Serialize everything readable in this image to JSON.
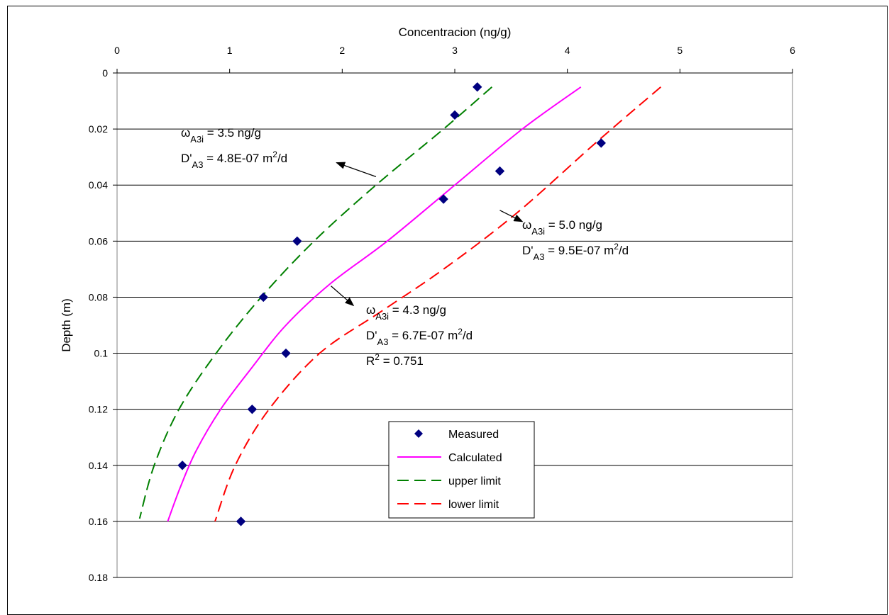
{
  "chart_data": {
    "type": "scatter",
    "title": "",
    "xlabel": "Concentracion (ng/g)",
    "ylabel": "Depth (m)",
    "xlim": [
      0,
      6
    ],
    "ylim": [
      0,
      0.18
    ],
    "x_axis_position": "top",
    "y_axis_reversed": true,
    "x_ticks": [
      "0",
      "1",
      "2",
      "3",
      "4",
      "5",
      "6"
    ],
    "y_ticks": [
      "0",
      "0.02",
      "0.04",
      "0.06",
      "0.08",
      "0.1",
      "0.12",
      "0.14",
      "0.16",
      "0.18"
    ],
    "grid": "horizontal",
    "legend_position": "inside-bottom-center",
    "series": [
      {
        "name": "Measured",
        "type": "scatter",
        "marker": "diamond",
        "color": "#000080",
        "points": [
          [
            3.2,
            0.005
          ],
          [
            3.0,
            0.015
          ],
          [
            4.3,
            0.025
          ],
          [
            3.4,
            0.035
          ],
          [
            2.9,
            0.045
          ],
          [
            1.6,
            0.06
          ],
          [
            1.3,
            0.08
          ],
          [
            1.5,
            0.1
          ],
          [
            1.2,
            0.12
          ],
          [
            0.58,
            0.14
          ],
          [
            1.1,
            0.16
          ]
        ]
      },
      {
        "name": "Calculated",
        "type": "line",
        "style": "solid",
        "color": "#ff00ff",
        "points": [
          [
            4.12,
            0.005
          ],
          [
            3.6,
            0.02
          ],
          [
            3.0,
            0.04
          ],
          [
            2.4,
            0.06
          ],
          [
            1.9,
            0.075
          ],
          [
            1.5,
            0.09
          ],
          [
            1.2,
            0.105
          ],
          [
            0.92,
            0.12
          ],
          [
            0.7,
            0.135
          ],
          [
            0.56,
            0.148
          ],
          [
            0.45,
            0.16
          ]
        ]
      },
      {
        "name": "upper limit",
        "type": "line",
        "style": "dashed",
        "color": "#008000",
        "points": [
          [
            3.33,
            0.005
          ],
          [
            2.9,
            0.02
          ],
          [
            2.3,
            0.04
          ],
          [
            1.75,
            0.06
          ],
          [
            1.28,
            0.08
          ],
          [
            0.88,
            0.1
          ],
          [
            0.55,
            0.12
          ],
          [
            0.33,
            0.14
          ],
          [
            0.2,
            0.159
          ]
        ]
      },
      {
        "name": "lower limit",
        "type": "line",
        "style": "dashed",
        "color": "#ff0000",
        "points": [
          [
            4.83,
            0.005
          ],
          [
            4.25,
            0.025
          ],
          [
            3.55,
            0.05
          ],
          [
            2.9,
            0.07
          ],
          [
            2.35,
            0.085
          ],
          [
            1.8,
            0.1
          ],
          [
            1.35,
            0.12
          ],
          [
            1.05,
            0.14
          ],
          [
            0.87,
            0.16
          ]
        ]
      }
    ],
    "annotations": [
      {
        "id": "upper",
        "lines": [
          {
            "main": "ω",
            "sub": "A3i",
            "rest": " = 3.5 ng/g"
          },
          {
            "main": "D'",
            "sub": "A3",
            "rest": " = 4.8E-07 m",
            "sup": "2",
            "tail": "/d"
          }
        ],
        "arrow_from": [
          2.3,
          0.037
        ],
        "arrow_to": [
          1.95,
          0.032
        ]
      },
      {
        "id": "lower",
        "lines": [
          {
            "main": "ω",
            "sub": "A3i",
            "rest": " = 5.0 ng/g"
          },
          {
            "main": "D'",
            "sub": "A3",
            "rest": " = 9.5E-07 m",
            "sup": "2",
            "tail": "/d"
          }
        ],
        "arrow_from": [
          3.4,
          0.049
        ],
        "arrow_to": [
          3.6,
          0.053
        ]
      },
      {
        "id": "calculated",
        "lines": [
          {
            "main": "ω",
            "sub": "A3i",
            "rest": " = 4.3 ng/g"
          },
          {
            "main": "D'",
            "sub": "A3",
            "rest": " = 6.7E-07 m",
            "sup": "2",
            "tail": "/d"
          },
          {
            "main": "R",
            "sup": "2",
            "rest": " = 0.751"
          }
        ],
        "arrow_from": [
          1.9,
          0.076
        ],
        "arrow_to": [
          2.1,
          0.083
        ]
      }
    ]
  }
}
